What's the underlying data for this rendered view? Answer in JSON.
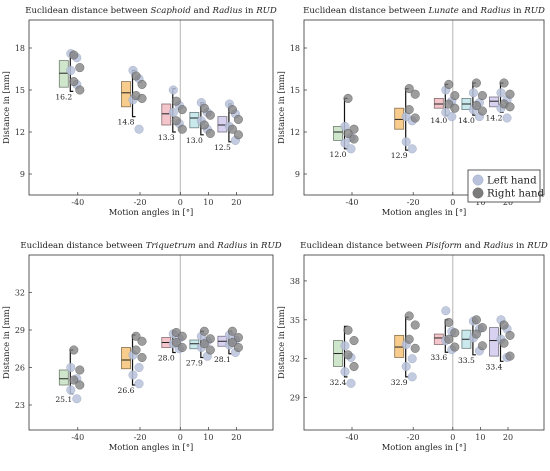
{
  "legend": {
    "entries": [
      {
        "name": "Left hand",
        "color": "#b8c2dc"
      },
      {
        "name": "Right hand",
        "color": "#7c7c7c"
      }
    ]
  },
  "chart_data": [
    {
      "type": "box",
      "title_parts": [
        {
          "text": "Euclidean distance between ",
          "italic": false
        },
        {
          "text": "Scaphoid",
          "italic": true
        },
        {
          "text": " and ",
          "italic": false
        },
        {
          "text": "Radius",
          "italic": true
        },
        {
          "text": " in ",
          "italic": false
        },
        {
          "text": "RUD",
          "italic": true
        }
      ],
      "xlabel": "Motion angles in [°]",
      "ylabel": "Distance in [mm]",
      "categories": [
        "-40",
        "-20",
        "0",
        "10",
        "20"
      ],
      "ylim": [
        7.5,
        20
      ],
      "yticks": [
        9,
        12,
        15,
        18
      ],
      "boxes": [
        {
          "category": "-40",
          "q1": 15.2,
          "q3": 17.1,
          "median": 16.2,
          "whisker_low": 14.9,
          "whisker_high": 17.7,
          "label": "16.2",
          "color": "#cfe6cc",
          "left": [
            17.6,
            17.3,
            16.4,
            15.4
          ],
          "right": [
            17.5,
            16.6,
            15.6,
            15.0
          ]
        },
        {
          "category": "-20",
          "q1": 13.8,
          "q3": 15.6,
          "median": 14.8,
          "whisker_low": 13.1,
          "whisker_high": 16.4,
          "label": "14.8",
          "color": "#f7cc8c",
          "left": [
            16.4,
            15.8,
            14.3,
            12.2
          ],
          "right": [
            16.0,
            15.4,
            14.6,
            14.4
          ]
        },
        {
          "category": "0",
          "q1": 12.5,
          "q3": 14.0,
          "median": 13.3,
          "whisker_low": 12.0,
          "whisker_high": 15.1,
          "label": "13.3",
          "color": "#f4c6cc",
          "left": [
            15.0,
            13.9,
            13.4,
            12.6
          ],
          "right": [
            14.2,
            13.6,
            12.8,
            12.2
          ]
        },
        {
          "category": "10",
          "q1": 12.3,
          "q3": 13.4,
          "median": 13.0,
          "whisker_low": 11.8,
          "whisker_high": 14.1,
          "label": "13.0",
          "color": "#c9e9ec",
          "left": [
            14.1,
            13.4,
            12.8,
            12.2
          ],
          "right": [
            13.7,
            13.2,
            12.5,
            11.9
          ]
        },
        {
          "category": "20",
          "q1": 12.0,
          "q3": 13.1,
          "median": 12.5,
          "whisker_low": 11.3,
          "whisker_high": 14.0,
          "label": "12.5",
          "color": "#d8d2f0",
          "left": [
            14.0,
            13.3,
            12.4,
            11.4
          ],
          "right": [
            13.6,
            12.9,
            12.2,
            11.8
          ]
        }
      ]
    },
    {
      "type": "box",
      "title_parts": [
        {
          "text": "Euclidean distance between ",
          "italic": false
        },
        {
          "text": "Lunate",
          "italic": true
        },
        {
          "text": " and ",
          "italic": false
        },
        {
          "text": "Radius",
          "italic": true
        },
        {
          "text": " in ",
          "italic": false
        },
        {
          "text": "RUD",
          "italic": true
        }
      ],
      "xlabel": "Motion angles in [°]",
      "ylabel": "Distance in [mm]",
      "categories": [
        "-40",
        "-20",
        "0",
        "10",
        "20"
      ],
      "ylim": [
        7.5,
        20
      ],
      "yticks": [
        9,
        12,
        15,
        18
      ],
      "boxes": [
        {
          "category": "-40",
          "q1": 11.4,
          "q3": 12.4,
          "median": 12.0,
          "whisker_low": 10.8,
          "whisker_high": 14.4,
          "label": "12.0",
          "color": "#cfe6cc",
          "left": [
            12.4,
            11.6,
            11.2,
            10.8
          ],
          "right": [
            14.4,
            12.2,
            11.9,
            11.5
          ]
        },
        {
          "category": "-20",
          "q1": 12.2,
          "q3": 13.7,
          "median": 12.9,
          "whisker_low": 10.7,
          "whisker_high": 15.1,
          "label": "12.9",
          "color": "#f7cc8c",
          "left": [
            13.1,
            12.8,
            11.3,
            10.8
          ],
          "right": [
            15.1,
            14.7,
            13.6,
            13.0
          ]
        },
        {
          "category": "0",
          "q1": 13.7,
          "q3": 14.4,
          "median": 14.0,
          "whisker_low": 13.2,
          "whisker_high": 15.4,
          "label": "14.0",
          "color": "#f4c6cc",
          "left": [
            15.0,
            14.2,
            13.4,
            13.1
          ],
          "right": [
            15.4,
            14.6,
            14.0,
            13.7
          ]
        },
        {
          "category": "10",
          "q1": 13.6,
          "q3": 14.4,
          "median": 14.0,
          "whisker_low": 13.2,
          "whisker_high": 15.5,
          "label": "14.0",
          "color": "#c9e9ec",
          "left": [
            14.8,
            14.1,
            13.6,
            13.1
          ],
          "right": [
            15.5,
            14.6,
            13.9,
            13.5
          ]
        },
        {
          "category": "20",
          "q1": 13.8,
          "q3": 14.5,
          "median": 14.2,
          "whisker_low": 13.4,
          "whisker_high": 15.5,
          "label": "14.2",
          "color": "#d8d2f0",
          "left": [
            14.8,
            14.3,
            13.7,
            13.0
          ],
          "right": [
            15.5,
            14.7,
            14.0,
            13.8
          ]
        }
      ]
    },
    {
      "type": "box",
      "title_parts": [
        {
          "text": "Euclidean distance between ",
          "italic": false
        },
        {
          "text": "Triquetrum",
          "italic": true
        },
        {
          "text": " and ",
          "italic": false
        },
        {
          "text": "Radius",
          "italic": true
        },
        {
          "text": " in ",
          "italic": false
        },
        {
          "text": "RUD",
          "italic": true
        }
      ],
      "xlabel": "Motion angles in [°]",
      "ylabel": "Distance in [mm]",
      "categories": [
        "-40",
        "-20",
        "0",
        "10",
        "20"
      ],
      "ylim": [
        21,
        35
      ],
      "yticks": [
        23,
        26,
        29,
        32
      ],
      "boxes": [
        {
          "category": "-40",
          "q1": 24.6,
          "q3": 25.8,
          "median": 25.1,
          "whisker_low": 23.9,
          "whisker_high": 27.4,
          "label": "25.1",
          "color": "#cfe6cc",
          "left": [
            26.0,
            25.1,
            24.2,
            23.5
          ],
          "right": [
            27.4,
            25.8,
            25.0,
            24.6
          ]
        },
        {
          "category": "-20",
          "q1": 25.9,
          "q3": 27.6,
          "median": 26.6,
          "whisker_low": 24.6,
          "whisker_high": 28.6,
          "label": "26.6",
          "color": "#f7cc8c",
          "left": [
            27.0,
            26.0,
            25.4,
            24.7
          ],
          "right": [
            28.5,
            28.1,
            27.4,
            26.8
          ]
        },
        {
          "category": "0",
          "q1": 27.6,
          "q3": 28.4,
          "median": 28.0,
          "whisker_low": 27.2,
          "whisker_high": 28.9,
          "label": "28.0",
          "color": "#f4c6cc",
          "left": [
            28.7,
            28.3,
            27.9,
            27.5
          ],
          "right": [
            28.8,
            28.5,
            28.0,
            27.6
          ]
        },
        {
          "category": "10",
          "q1": 27.5,
          "q3": 28.2,
          "median": 27.9,
          "whisker_low": 26.8,
          "whisker_high": 28.9,
          "label": "27.9",
          "color": "#c9e9ec",
          "left": [
            28.5,
            28.1,
            27.6,
            26.9
          ],
          "right": [
            28.9,
            28.3,
            27.9,
            27.4
          ]
        },
        {
          "category": "20",
          "q1": 27.7,
          "q3": 28.5,
          "median": 28.1,
          "whisker_low": 27.1,
          "whisker_high": 28.9,
          "label": "28.1",
          "color": "#d8d2f0",
          "left": [
            28.6,
            28.2,
            27.8,
            27.2
          ],
          "right": [
            28.9,
            28.4,
            28.0,
            27.6
          ]
        }
      ]
    },
    {
      "type": "box",
      "title_parts": [
        {
          "text": "Euclidean distance between ",
          "italic": false
        },
        {
          "text": "Pisiform",
          "italic": true
        },
        {
          "text": " and ",
          "italic": false
        },
        {
          "text": "Radius",
          "italic": true
        },
        {
          "text": " in ",
          "italic": false
        },
        {
          "text": "RUD",
          "italic": true
        }
      ],
      "xlabel": "Motion angles in [°]",
      "ylabel": "Distance in [mm]",
      "categories": [
        "-40",
        "-20",
        "0",
        "10",
        "20"
      ],
      "ylim": [
        26.5,
        40
      ],
      "yticks": [
        29,
        32,
        35,
        38
      ],
      "boxes": [
        {
          "category": "-40",
          "q1": 31.4,
          "q3": 33.4,
          "median": 32.4,
          "whisker_low": 30.6,
          "whisker_high": 34.5,
          "label": "32.4",
          "color": "#cfe6cc",
          "left": [
            33.0,
            32.1,
            31.0,
            30.1
          ],
          "right": [
            34.2,
            33.4,
            32.3,
            31.4
          ]
        },
        {
          "category": "-20",
          "q1": 32.1,
          "q3": 33.8,
          "median": 32.9,
          "whisker_low": 30.6,
          "whisker_high": 35.2,
          "label": "32.9",
          "color": "#f7cc8c",
          "left": [
            33.1,
            32.0,
            31.4,
            30.6
          ],
          "right": [
            35.3,
            34.6,
            33.5,
            32.8
          ]
        },
        {
          "category": "0",
          "q1": 33.1,
          "q3": 33.9,
          "median": 33.6,
          "whisker_low": 32.5,
          "whisker_high": 35.0,
          "label": "33.6",
          "color": "#f4c6cc",
          "left": [
            35.7,
            34.1,
            33.4,
            32.7
          ],
          "right": [
            34.8,
            34.0,
            33.5,
            32.9
          ]
        },
        {
          "category": "10",
          "q1": 32.8,
          "q3": 34.2,
          "median": 33.5,
          "whisker_low": 32.3,
          "whisker_high": 34.9,
          "label": "33.5",
          "color": "#c9e9ec",
          "left": [
            34.9,
            34.3,
            33.6,
            32.6
          ],
          "right": [
            35.0,
            34.4,
            33.9,
            33.0
          ]
        },
        {
          "category": "20",
          "q1": 32.2,
          "q3": 34.4,
          "median": 33.4,
          "whisker_low": 31.8,
          "whisker_high": 34.8,
          "label": "33.4",
          "color": "#d8d2f0",
          "left": [
            35.0,
            34.3,
            33.5,
            32.1
          ],
          "right": [
            34.6,
            33.8,
            33.2,
            32.2
          ]
        }
      ]
    }
  ]
}
